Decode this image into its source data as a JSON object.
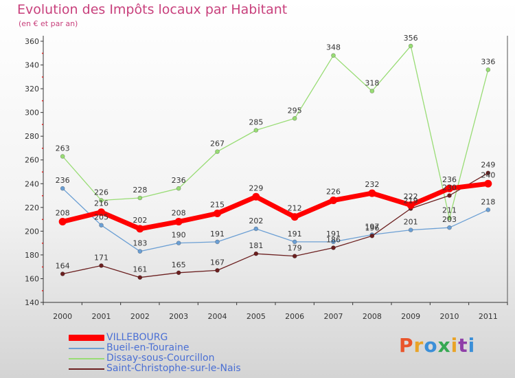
{
  "header": {
    "title": "Evolution des Impôts locaux par Habitant",
    "subtitle": "(en € et par an)"
  },
  "brand": {
    "logo_text": "Proxiti",
    "letter_colors": [
      "#e9552b",
      "#e9a428",
      "#3b8fd8",
      "#36a852",
      "#e9a428",
      "#8f3fa8",
      "#3b8fd8"
    ]
  },
  "chart_data": {
    "type": "line",
    "x": [
      "2000",
      "2001",
      "2002",
      "2003",
      "2004",
      "2005",
      "2006",
      "2007",
      "2008",
      "2009",
      "2010",
      "2011"
    ],
    "ylim": [
      140,
      360
    ],
    "yticks": [
      140,
      160,
      180,
      200,
      220,
      240,
      260,
      280,
      300,
      320,
      340,
      360
    ],
    "grid": false,
    "legend_position": "bottom-left",
    "series": [
      {
        "name": "Dissay-sous-Courcillon",
        "color": "#98dc74",
        "values": [
          263,
          226,
          228,
          236,
          267,
          285,
          295,
          348,
          318,
          356,
          211,
          336
        ]
      },
      {
        "name": "Bueil-en-Touraine",
        "color": "#6b9fd4",
        "values": [
          236,
          205,
          183,
          190,
          191,
          202,
          191,
          191,
          197,
          201,
          203,
          218
        ]
      },
      {
        "name": "Saint-Christophe-sur-le-Nais",
        "color": "#6b1f1f",
        "values": [
          164,
          171,
          161,
          165,
          167,
          181,
          179,
          186,
          196,
          219,
          230,
          249
        ]
      },
      {
        "name": "VILLEBOURG",
        "color": "#ff0000",
        "values": [
          208,
          216,
          202,
          208,
          215,
          229,
          212,
          226,
          232,
          222,
          236,
          240
        ]
      }
    ]
  },
  "legend": {
    "items": [
      {
        "label": "VILLEBOURG",
        "color": "#ff0000",
        "thick": true
      },
      {
        "label": "Bueil-en-Touraine",
        "color": "#6b9fd4",
        "thick": false
      },
      {
        "label": "Dissay-sous-Courcillon",
        "color": "#98dc74",
        "thick": false
      },
      {
        "label": "Saint-Christophe-sur-le-Nais",
        "color": "#6b1f1f",
        "thick": false
      }
    ]
  }
}
